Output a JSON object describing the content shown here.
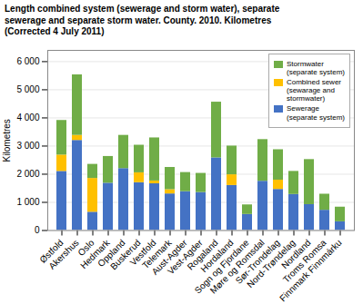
{
  "chart_data": {
    "type": "bar",
    "stacked": true,
    "title": "Length combined system (sewerage and storm water), separate\nsewerage and separate storm water. County. 2010. Kilometres\n(Corrected 4 July 2011)",
    "ylabel": "Kilometres",
    "categories": [
      "Østfold",
      "Akershus",
      "Oslo",
      "Hedmark",
      "Oppland",
      "Buskerud",
      "Vestfold",
      "Telemark",
      "Aust-Agder",
      "Vest-Agder",
      "Rogaland",
      "Hordaland",
      "Sogn og Fjordane",
      "Møre og Romsdal",
      "Sør-Trondelag",
      "Nord-Trøndelag",
      "Nordland",
      "Troms Romsa",
      "Finnmark Finnmárku"
    ],
    "series": [
      {
        "name": "Sewerage\n(separate system)",
        "color": "#4472c4",
        "values": [
          2100,
          3200,
          650,
          1680,
          2200,
          1700,
          1660,
          1300,
          1380,
          1350,
          2580,
          1600,
          570,
          1750,
          1460,
          1280,
          920,
          720,
          310
        ]
      },
      {
        "name": "Combined sewer\n(sewarage and\nstormwater)",
        "color": "#ffc000",
        "values": [
          580,
          180,
          1200,
          0,
          0,
          350,
          100,
          150,
          0,
          0,
          0,
          380,
          0,
          0,
          330,
          0,
          0,
          0,
          0
        ]
      },
      {
        "name": "Stormwater\n(separate system)",
        "color": "#70ad47",
        "values": [
          1230,
          2150,
          500,
          950,
          1180,
          980,
          1530,
          790,
          680,
          680,
          1980,
          1020,
          340,
          1480,
          1080,
          820,
          1600,
          570,
          520
        ]
      }
    ],
    "ylim": [
      0,
      6400
    ],
    "yticks": [
      0,
      {
        "value": 1000,
        "label": "1 000"
      },
      {
        "value": 2000,
        "label": "2 000"
      },
      {
        "value": 3000,
        "label": "3 000"
      },
      {
        "value": 4000,
        "label": "4 000"
      },
      {
        "value": 5000,
        "label": "5 000"
      },
      {
        "value": 6000,
        "label": "6 000"
      }
    ],
    "grid": true,
    "legend": "upper right"
  }
}
